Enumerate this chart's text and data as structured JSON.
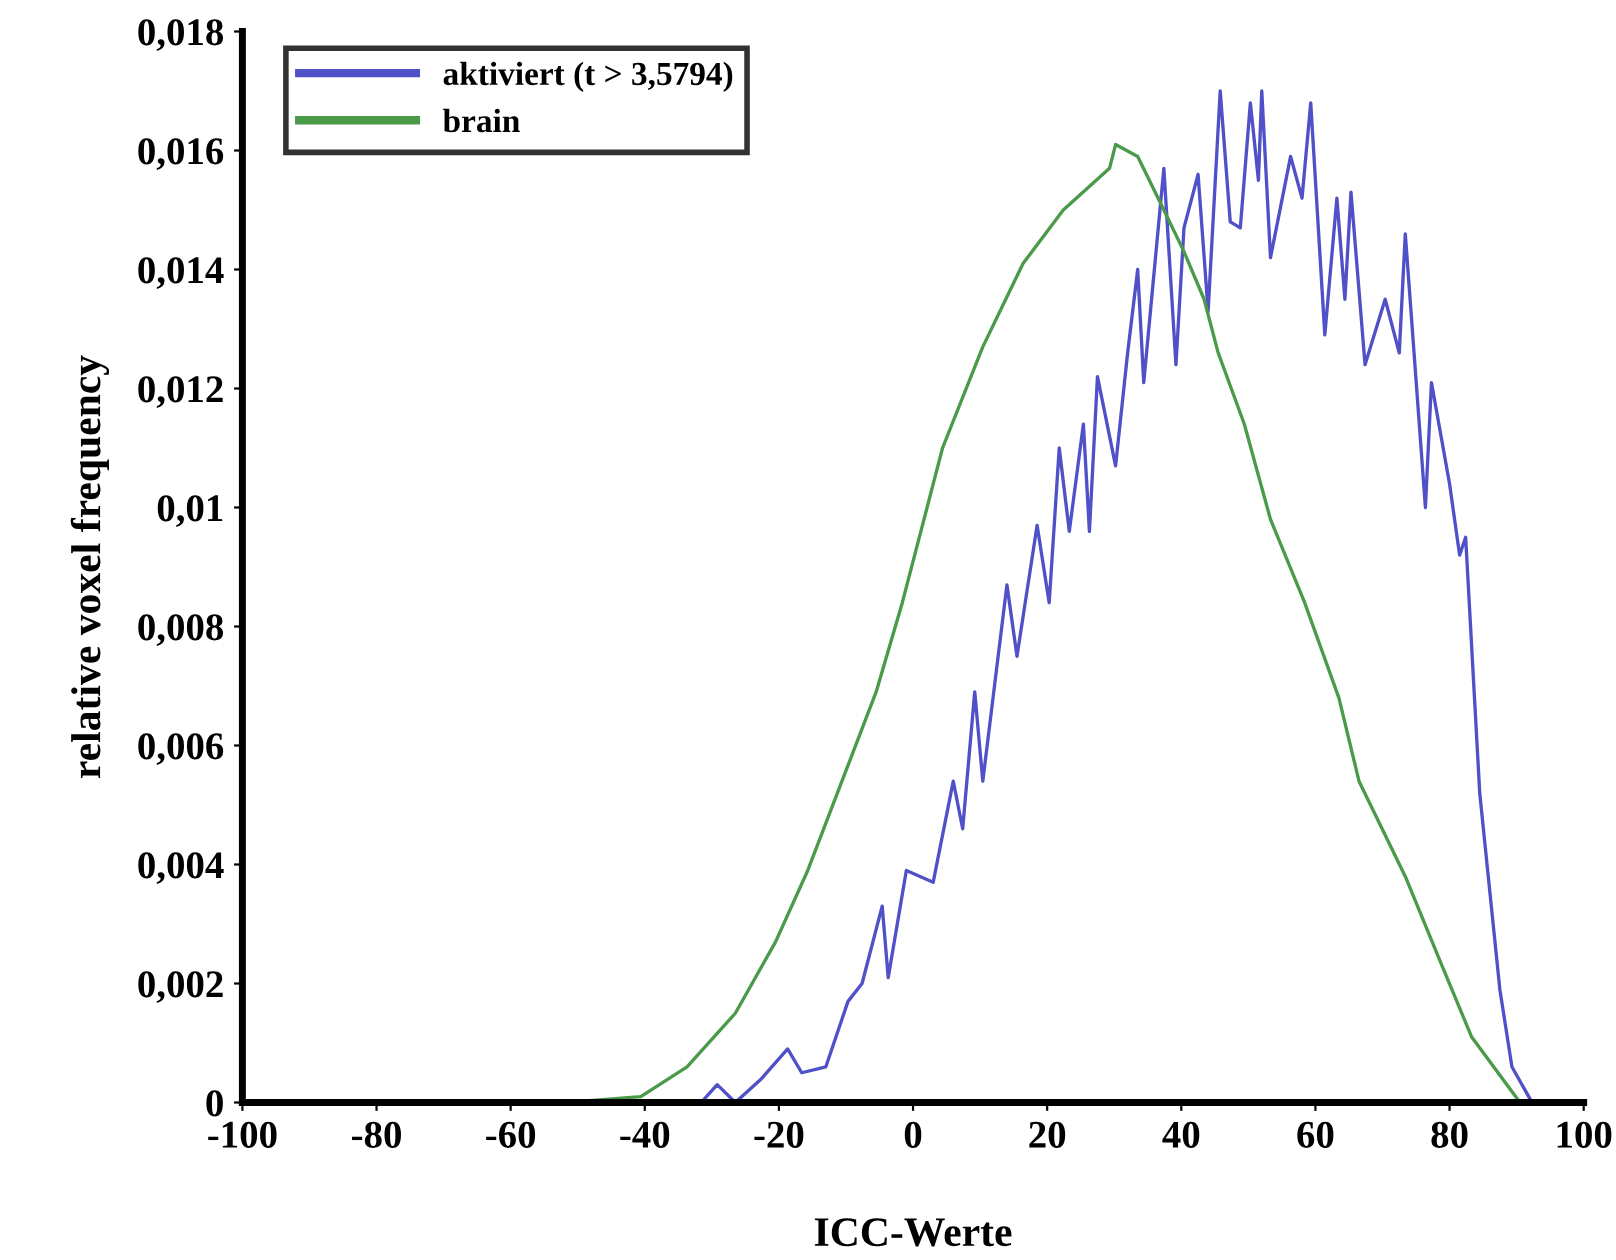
{
  "chart_data": {
    "type": "line",
    "xlabel": "ICC-Werte",
    "ylabel": "relative voxel frequency",
    "xlim": [
      -100,
      100
    ],
    "xticks": [
      -100,
      -80,
      -60,
      -40,
      -20,
      0,
      20,
      40,
      60,
      80,
      100
    ],
    "ylim": [
      0,
      0.018
    ],
    "yticks": [
      {
        "value": 0,
        "label": "0"
      },
      {
        "value": 0.002,
        "label": "0,002"
      },
      {
        "value": 0.004,
        "label": "0,004"
      },
      {
        "value": 0.006,
        "label": "0,006"
      },
      {
        "value": 0.008,
        "label": "0,008"
      },
      {
        "value": 0.01,
        "label": "0,01"
      },
      {
        "value": 0.012,
        "label": "0,012"
      },
      {
        "value": 0.014,
        "label": "0,014"
      },
      {
        "value": 0.016,
        "label": "0,016"
      },
      {
        "value": 0.018,
        "label": "0,018"
      }
    ],
    "grid": false,
    "legend": "top left",
    "marker": "none",
    "line_style": "solid",
    "series": [
      {
        "name": "aktiviert (t > 3,5794)",
        "color": "#5050c8",
        "x": [
          -37.6,
          -31.6,
          -29.2,
          -26.5,
          -22.6,
          -18.7,
          -16.6,
          -13,
          -9.7,
          -7.6,
          -4.6,
          -3.7,
          -1,
          3,
          6,
          7.4,
          9.2,
          10.4,
          14,
          15.5,
          18.5,
          20.3,
          21.8,
          23.3,
          25.4,
          26.3,
          27.5,
          30.2,
          32,
          33.5,
          34.4,
          37.4,
          39.2,
          40.4,
          42.5,
          44,
          45.8,
          47.3,
          48.8,
          50.3,
          51.5,
          52,
          53.3,
          56.3,
          58,
          59.3,
          61.4,
          63.2,
          64.4,
          65.3,
          67.4,
          70.4,
          72.5,
          73.4,
          76.4,
          77.3,
          80,
          81.5,
          82.4,
          84.5,
          87.5,
          89.3,
          92.3
        ],
        "values": [
          0,
          0,
          0.0003,
          0,
          0.0004,
          0.0009,
          0.0005,
          0.0006,
          0.0017,
          0.002,
          0.0033,
          0.0021,
          0.0039,
          0.0037,
          0.0054,
          0.0046,
          0.0069,
          0.0054,
          0.0087,
          0.0075,
          0.0097,
          0.0084,
          0.011,
          0.0096,
          0.0114,
          0.0096,
          0.0122,
          0.0107,
          0.0126,
          0.014,
          0.0121,
          0.0157,
          0.0124,
          0.0147,
          0.0156,
          0.0133,
          0.017,
          0.0148,
          0.0147,
          0.0168,
          0.0155,
          0.017,
          0.0142,
          0.0159,
          0.0152,
          0.0168,
          0.0129,
          0.0152,
          0.0135,
          0.0153,
          0.0124,
          0.0135,
          0.0126,
          0.0146,
          0.01,
          0.0121,
          0.0104,
          0.0092,
          0.0095,
          0.0052,
          0.0019,
          0.0006,
          0
        ]
      },
      {
        "name": "brain",
        "color": "#4a9a4a",
        "x": [
          -51.7,
          -40.6,
          -33.7,
          -26.5,
          -20.5,
          -15.7,
          -10.6,
          -5.5,
          -1.6,
          4.4,
          10.4,
          16.4,
          22.4,
          29.3,
          30.2,
          33.5,
          37.4,
          40.4,
          43.4,
          45.5,
          49.4,
          53.3,
          58.4,
          63.5,
          66.5,
          73.4,
          78.5,
          83.3,
          90.5
        ],
        "values": [
          0,
          0.0001,
          0.0006,
          0.0015,
          0.0027,
          0.0039,
          0.0054,
          0.0069,
          0.0084,
          0.011,
          0.0127,
          0.0141,
          0.015,
          0.0157,
          0.0161,
          0.0159,
          0.015,
          0.0143,
          0.0135,
          0.0126,
          0.0114,
          0.0098,
          0.0084,
          0.0068,
          0.0054,
          0.0038,
          0.0024,
          0.0011,
          0
        ]
      }
    ]
  }
}
